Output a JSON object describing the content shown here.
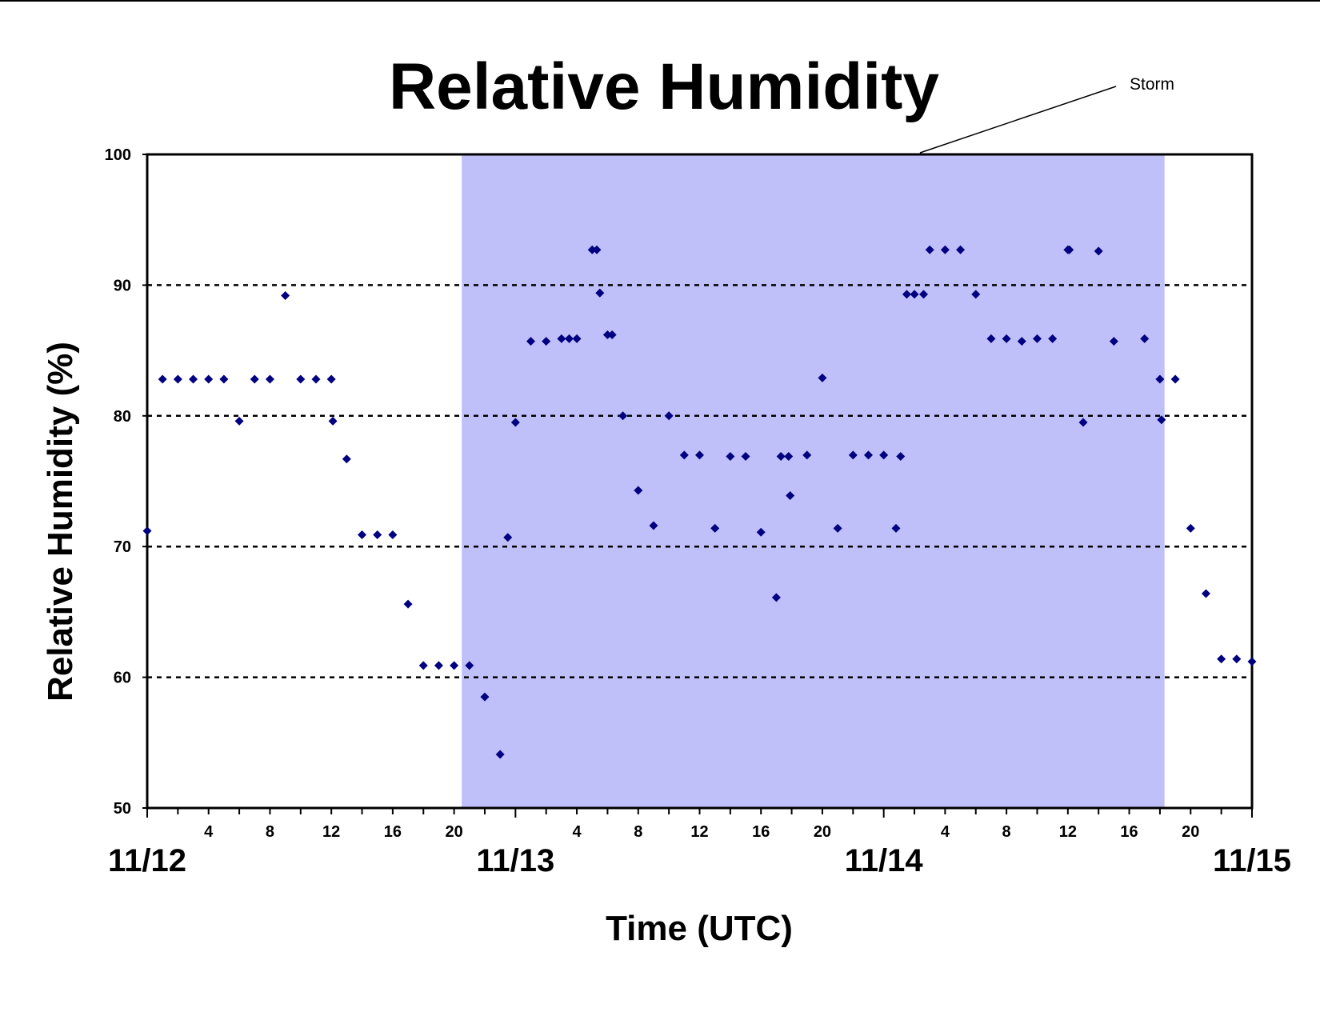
{
  "chart_data": {
    "type": "scatter",
    "title": "Relative Humidity",
    "xlabel": "Time (UTC)",
    "ylabel": "Relative Humidity (%)",
    "x_unit": "hours from 11/12 00:00 UTC",
    "xlim": [
      0,
      72
    ],
    "ylim": [
      50,
      100
    ],
    "yticks": [
      50,
      60,
      70,
      80,
      90,
      100
    ],
    "grid": {
      "horizontal_dotted_at": [
        60,
        70,
        80,
        90
      ]
    },
    "x_hour_ticks": [
      "4",
      "8",
      "12",
      "16",
      "20",
      "4",
      "8",
      "12",
      "16",
      "20",
      "4",
      "8",
      "12",
      "16",
      "20"
    ],
    "x_day_labels": [
      "11/12",
      "11/13",
      "11/14",
      "11/15"
    ],
    "annotation": {
      "text": "Storm",
      "shaded_x_range": [
        20.5,
        66.3
      ],
      "shade_color": "#bfbffa"
    },
    "marker_color": "#000080",
    "points": [
      [
        0,
        71.2
      ],
      [
        1,
        82.8
      ],
      [
        2,
        82.8
      ],
      [
        3,
        82.8
      ],
      [
        4,
        82.8
      ],
      [
        5,
        82.8
      ],
      [
        6,
        79.6
      ],
      [
        7,
        82.8
      ],
      [
        8,
        82.8
      ],
      [
        9,
        89.2
      ],
      [
        10,
        82.8
      ],
      [
        11,
        82.8
      ],
      [
        12,
        82.8
      ],
      [
        12.1,
        79.6
      ],
      [
        13,
        76.7
      ],
      [
        14,
        70.9
      ],
      [
        15,
        70.9
      ],
      [
        16,
        70.9
      ],
      [
        17,
        65.6
      ],
      [
        18,
        60.9
      ],
      [
        19,
        60.9
      ],
      [
        20,
        60.9
      ],
      [
        21,
        60.9
      ],
      [
        22,
        58.5
      ],
      [
        23,
        54.1
      ],
      [
        23.5,
        70.7
      ],
      [
        24,
        79.5
      ],
      [
        25,
        85.7
      ],
      [
        26,
        85.7
      ],
      [
        27,
        85.9
      ],
      [
        27.5,
        85.9
      ],
      [
        28,
        85.9
      ],
      [
        29,
        92.7
      ],
      [
        29.3,
        92.7
      ],
      [
        29.5,
        89.4
      ],
      [
        30,
        86.2
      ],
      [
        30.3,
        86.2
      ],
      [
        31,
        80.0
      ],
      [
        32,
        74.3
      ],
      [
        33,
        71.6
      ],
      [
        34,
        80.0
      ],
      [
        35,
        77.0
      ],
      [
        36,
        77.0
      ],
      [
        37,
        71.4
      ],
      [
        38,
        76.9
      ],
      [
        39,
        76.9
      ],
      [
        40,
        71.1
      ],
      [
        41,
        66.1
      ],
      [
        41.3,
        76.9
      ],
      [
        41.8,
        76.9
      ],
      [
        41.9,
        73.9
      ],
      [
        43,
        77.0
      ],
      [
        44,
        82.9
      ],
      [
        45,
        71.4
      ],
      [
        46,
        77.0
      ],
      [
        47,
        77.0
      ],
      [
        48,
        77.0
      ],
      [
        48.8,
        71.4
      ],
      [
        49.1,
        76.9
      ],
      [
        49.5,
        89.3
      ],
      [
        50,
        89.3
      ],
      [
        50.6,
        89.3
      ],
      [
        51,
        92.7
      ],
      [
        52,
        92.7
      ],
      [
        53,
        92.7
      ],
      [
        54,
        89.3
      ],
      [
        55,
        85.9
      ],
      [
        56,
        85.9
      ],
      [
        57,
        85.7
      ],
      [
        58,
        85.9
      ],
      [
        59,
        85.9
      ],
      [
        60,
        92.7
      ],
      [
        60.1,
        92.7
      ],
      [
        61,
        79.5
      ],
      [
        62,
        92.6
      ],
      [
        63,
        85.7
      ],
      [
        65,
        85.9
      ],
      [
        66,
        82.8
      ],
      [
        66.1,
        79.7
      ],
      [
        67,
        82.8
      ],
      [
        68,
        71.4
      ],
      [
        69,
        66.4
      ],
      [
        70,
        61.4
      ],
      [
        71,
        61.4
      ],
      [
        72,
        61.2
      ]
    ]
  }
}
